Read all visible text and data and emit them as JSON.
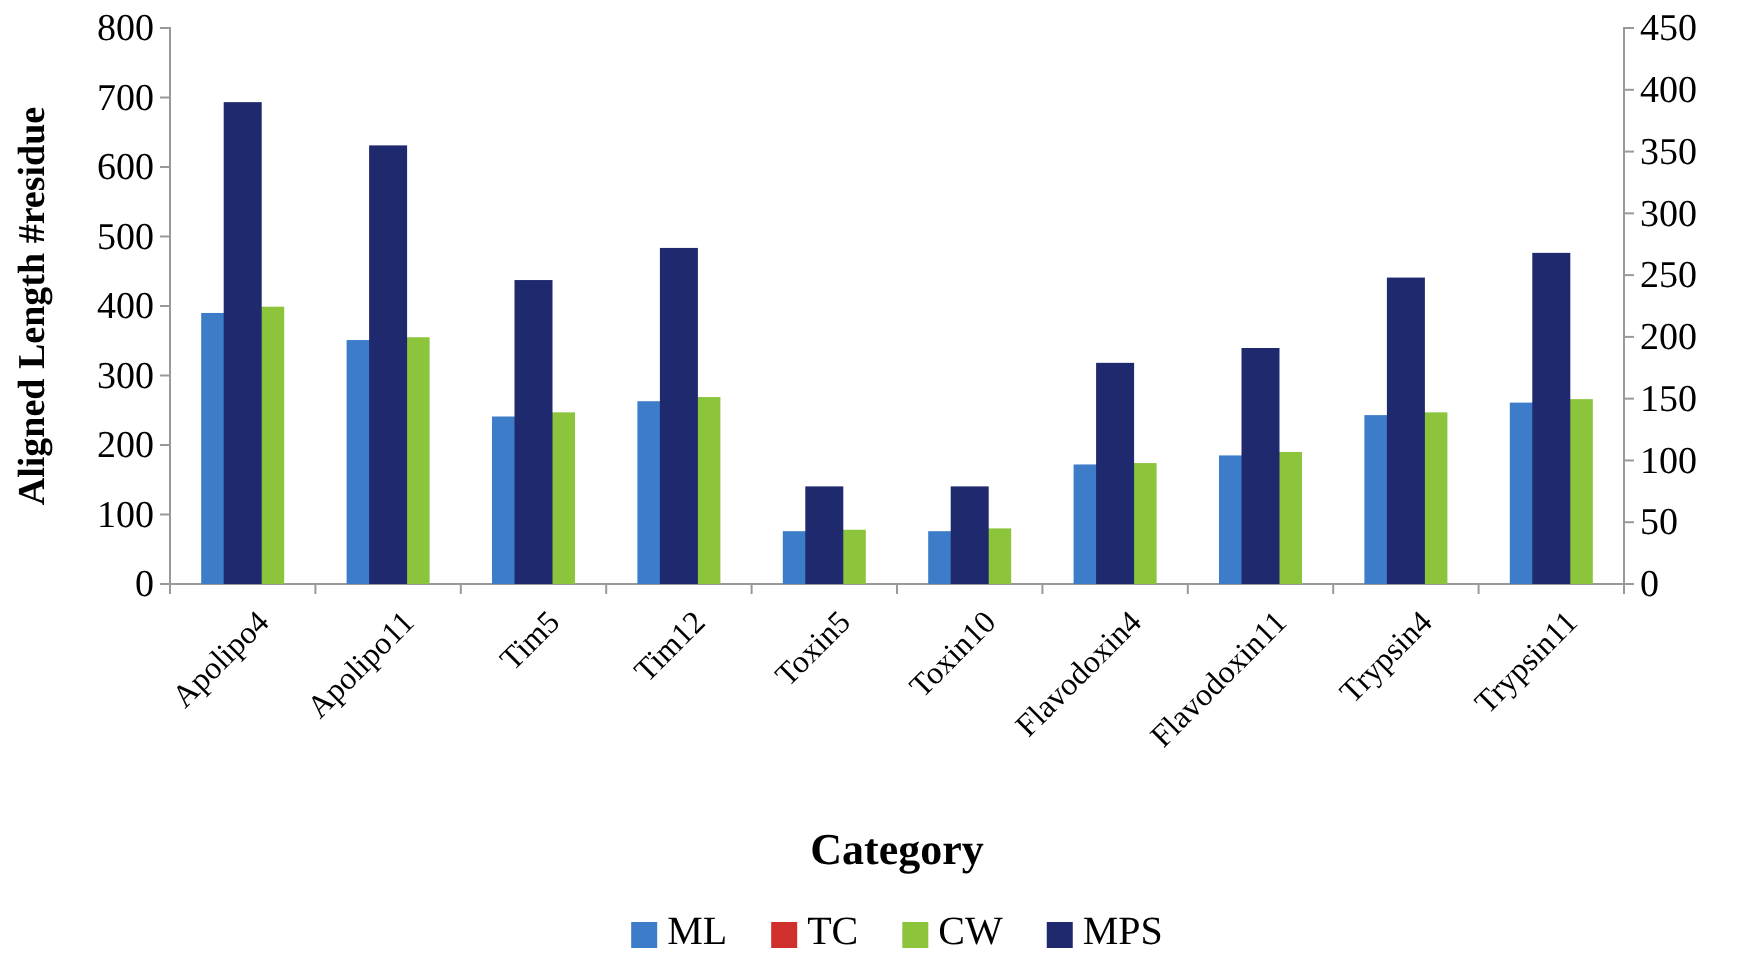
{
  "chart_data": {
    "type": "bar",
    "xlabel": "Category",
    "ylabel": "Aligned Length #residue",
    "categories": [
      "Apolipo4",
      "Apolipo11",
      "Tim5",
      "Tim12",
      "Toxin5",
      "Toxin10",
      "Flavodoxin4",
      "Flavodoxin11",
      "Trypsin4",
      "Trypsin11"
    ],
    "series": [
      {
        "name": "ML",
        "color": "#3d7cc9",
        "values": [
          390,
          351,
          241,
          263,
          76,
          76,
          172,
          185,
          243,
          261
        ]
      },
      {
        "name": "TC",
        "color": "#d0302c",
        "values": [
          null,
          null,
          null,
          null,
          null,
          null,
          null,
          null,
          null,
          null
        ]
      },
      {
        "name": "CW",
        "color": "#8cc43c",
        "values": [
          399,
          355,
          247,
          269,
          78,
          80,
          174,
          190,
          247,
          266
        ]
      },
      {
        "name": "MPS",
        "color": "#1f2a6e",
        "axis": "y2",
        "values": [
          390,
          355,
          246,
          272,
          79,
          79,
          179,
          191,
          248,
          268
        ]
      }
    ],
    "ylim": [
      0,
      800
    ],
    "yticks": [
      0,
      100,
      200,
      300,
      400,
      500,
      600,
      700,
      800
    ],
    "y2lim": [
      0,
      450
    ],
    "y2ticks": [
      0,
      50,
      100,
      150,
      200,
      250,
      300,
      350,
      400,
      450
    ],
    "grid": false,
    "legend": "bottom"
  }
}
